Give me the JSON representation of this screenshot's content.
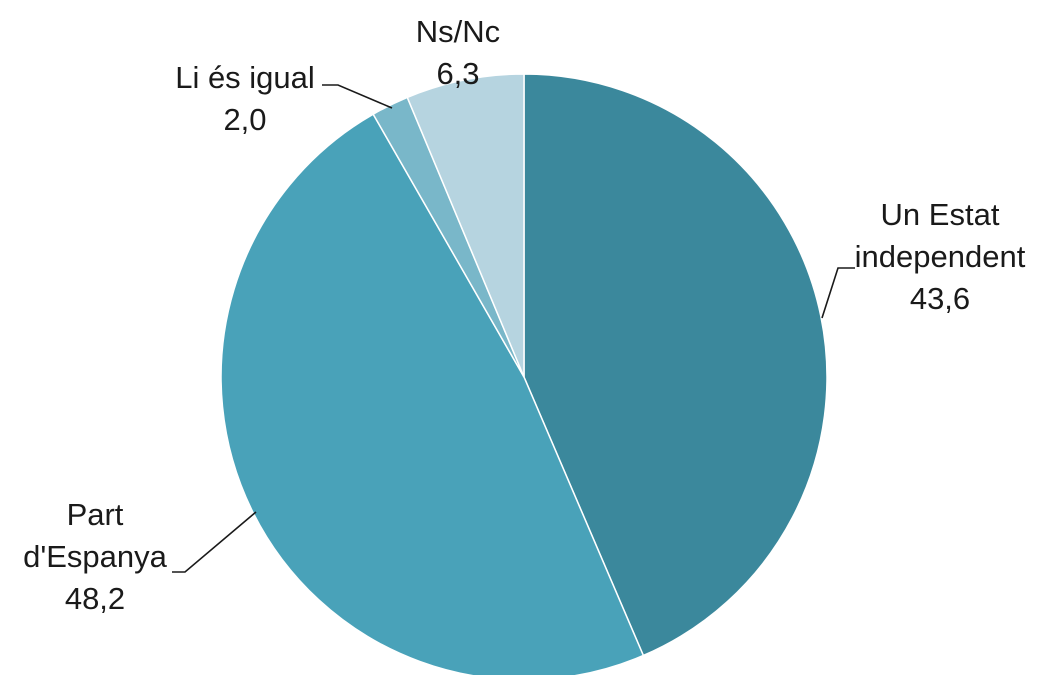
{
  "chart_data": {
    "type": "pie",
    "decimal_separator": ",",
    "slices": [
      {
        "label_lines": [
          "Un Estat",
          "independent"
        ],
        "value": 43.6,
        "value_label": "43,6",
        "color": "#3b889c"
      },
      {
        "label_lines": [
          "Part",
          "d'Espanya"
        ],
        "value": 48.2,
        "value_label": "48,2",
        "color": "#49a2b9"
      },
      {
        "label_lines": [
          "Li és igual"
        ],
        "value": 2.0,
        "value_label": "2,0",
        "color": "#79b7c9"
      },
      {
        "label_lines": [
          "Ns/Nc"
        ],
        "value": 6.3,
        "value_label": "6,3",
        "color": "#b6d4e0"
      }
    ],
    "start_angle": "12 o'clock",
    "direction": "clockwise",
    "legend": "none",
    "labels": "outside with leader lines"
  }
}
